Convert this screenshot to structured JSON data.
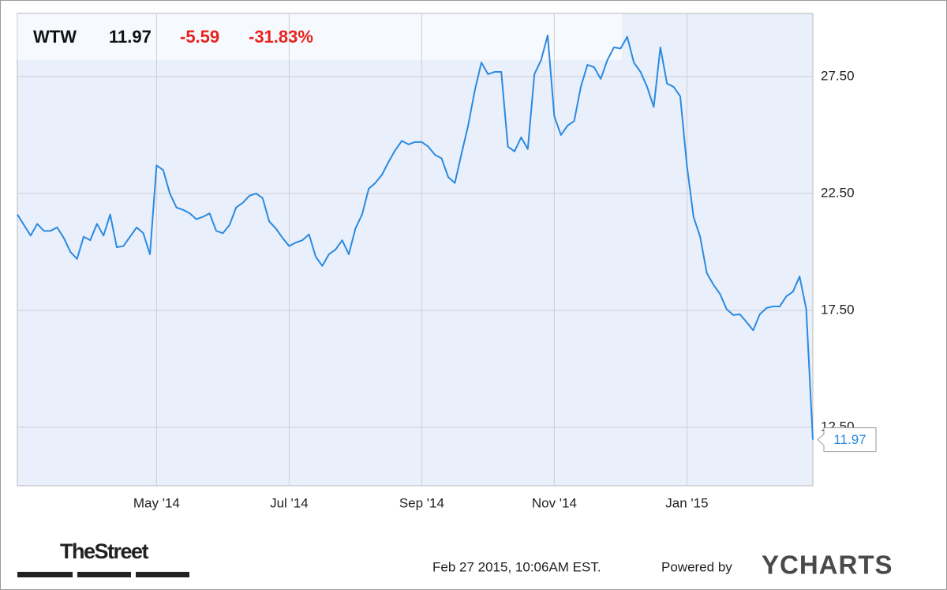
{
  "chart_data": {
    "type": "line",
    "header": {
      "symbol": "WTW",
      "change": "-5.59",
      "change_pct": "-31.83%"
    },
    "categories": [
      null,
      null,
      null,
      null,
      null,
      null,
      null,
      null,
      null,
      null,
      null,
      null,
      null,
      null,
      null,
      null,
      null,
      null,
      null,
      null,
      null,
      "May '14",
      null,
      null,
      null,
      null,
      null,
      null,
      null,
      null,
      null,
      null,
      null,
      null,
      null,
      null,
      null,
      null,
      null,
      null,
      null,
      "Jul '14",
      null,
      null,
      null,
      null,
      null,
      null,
      null,
      null,
      null,
      null,
      null,
      null,
      null,
      null,
      null,
      null,
      null,
      null,
      null,
      "Sep '14",
      null,
      null,
      null,
      null,
      null,
      null,
      null,
      null,
      null,
      null,
      null,
      null,
      null,
      null,
      null,
      null,
      null,
      null,
      null,
      "Nov '14",
      null,
      null,
      null,
      null,
      null,
      null,
      null,
      null,
      null,
      null,
      null,
      null,
      null,
      null,
      null,
      null,
      null,
      null,
      null,
      "Jan '15",
      null,
      null,
      null,
      null,
      null,
      null,
      null,
      null,
      null,
      null,
      null,
      null,
      null,
      null,
      null,
      null,
      null,
      null,
      null
    ],
    "series": [
      {
        "name": "WTW",
        "color": "#2b8ae0",
        "values": [
          21.6,
          21.15,
          20.7,
          21.2,
          20.9,
          20.9,
          21.05,
          20.6,
          20.0,
          19.7,
          20.65,
          20.5,
          21.2,
          20.7,
          21.6,
          20.2,
          20.25,
          20.65,
          21.05,
          20.8,
          19.9,
          23.7,
          23.5,
          22.5,
          21.9,
          21.8,
          21.65,
          21.4,
          21.5,
          21.65,
          20.9,
          20.8,
          21.15,
          21.9,
          22.1,
          22.4,
          22.5,
          22.3,
          21.3,
          21.0,
          20.6,
          20.25,
          20.4,
          20.5,
          20.75,
          19.8,
          19.4,
          19.9,
          20.1,
          20.5,
          19.9,
          21.0,
          21.6,
          22.7,
          22.95,
          23.3,
          23.85,
          24.35,
          24.75,
          24.6,
          24.7,
          24.7,
          24.5,
          24.15,
          24.0,
          23.2,
          22.95,
          24.2,
          25.4,
          26.9,
          28.1,
          27.6,
          27.7,
          27.7,
          24.5,
          24.3,
          24.9,
          24.4,
          27.6,
          28.2,
          29.26,
          25.8,
          25.0,
          25.4,
          25.6,
          27.06,
          28.0,
          27.9,
          27.4,
          28.2,
          28.75,
          28.7,
          29.2,
          28.1,
          27.7,
          27.06,
          26.2,
          28.75,
          27.2,
          27.06,
          26.65,
          23.7,
          21.5,
          20.65,
          19.1,
          18.6,
          18.2,
          17.55,
          17.3,
          17.33,
          17.0,
          16.65,
          17.33,
          17.6,
          17.67,
          17.67,
          18.1,
          18.3,
          18.95,
          17.56,
          11.97
        ]
      }
    ],
    "ylim": [
      10,
      30.2
    ],
    "yticks": [
      {
        "value": 12.5,
        "label": "12.50"
      },
      {
        "value": 17.5,
        "label": "17.50"
      },
      {
        "value": 22.5,
        "label": "22.50"
      },
      {
        "value": 27.5,
        "label": "27.50"
      }
    ],
    "grid": true,
    "footer": {
      "source": "TheStreet",
      "timestamp": "Feb 27 2015, 10:06AM EST.",
      "powered_by": "Powered by",
      "brand": "YCHARTS"
    }
  }
}
